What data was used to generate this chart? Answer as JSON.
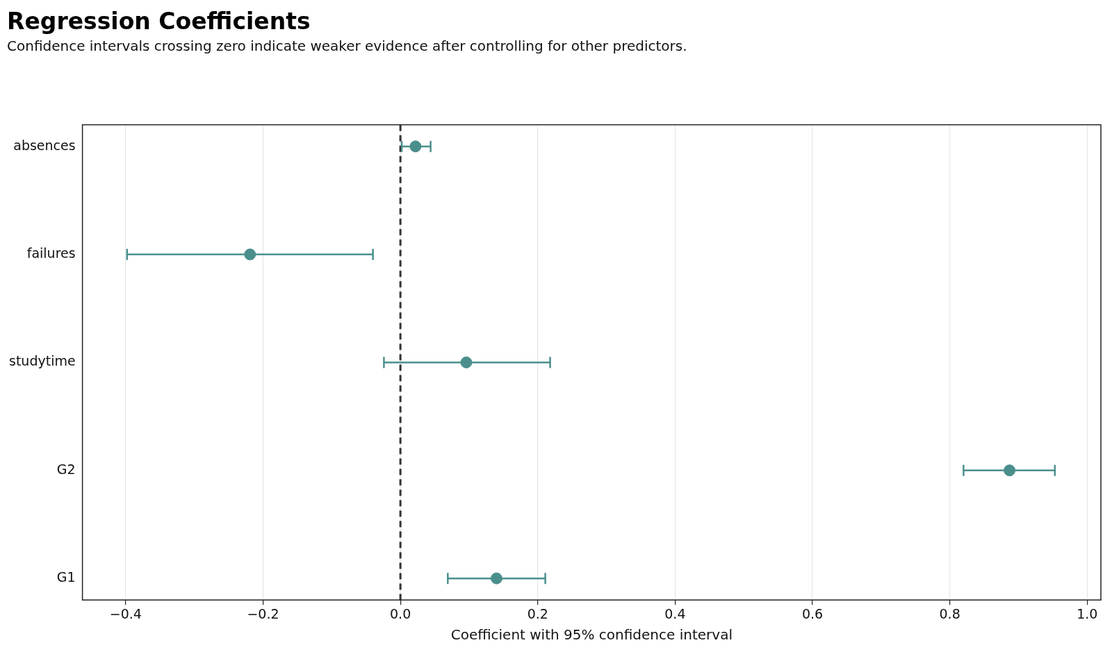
{
  "chart_data": {
    "type": "scatter",
    "orientation": "horizontal",
    "title": "Regression Coefficients",
    "subtitle": "Confidence intervals crossing zero indicate weaker evidence after controlling for other predictors.",
    "xlabel": "Coefficient with 95% confidence interval",
    "categories": [
      "absences",
      "failures",
      "studytime",
      "G2",
      "G1"
    ],
    "values": [
      0.022,
      -0.219,
      0.096,
      0.887,
      0.14
    ],
    "errors": [
      [
        0.002,
        0.044
      ],
      [
        -0.398,
        -0.04
      ],
      [
        -0.024,
        0.218
      ],
      [
        0.82,
        0.953
      ],
      [
        0.069,
        0.211
      ]
    ],
    "color": "#4a8f8c",
    "marker": "circle",
    "grid": "x",
    "xlim": [
      -0.463,
      1.02
    ],
    "xticks": [
      {
        "value": -0.4,
        "label": "−0.4"
      },
      {
        "value": -0.2,
        "label": "−0.2"
      },
      {
        "value": 0,
        "label": "0.0"
      },
      0.2,
      0.4,
      0.6,
      0.8,
      {
        "value": 1,
        "label": "1.0"
      }
    ],
    "ref_lines": [
      {
        "axis": "x",
        "value": 0,
        "color": "#333333",
        "line_style": "dashed"
      }
    ]
  }
}
